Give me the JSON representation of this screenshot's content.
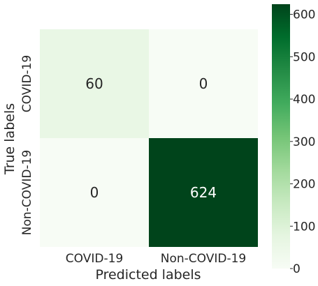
{
  "chart_data": {
    "type": "heatmap",
    "title": "",
    "xlabel": "Predicted labels",
    "ylabel": "True labels",
    "x_categories": [
      "COVID-19",
      "Non-COVID-19"
    ],
    "y_categories": [
      "COVID-19",
      "Non-COVID-19"
    ],
    "values": [
      [
        60,
        0
      ],
      [
        0,
        624
      ]
    ],
    "colormap": "Greens",
    "colorbar": {
      "range": [
        0,
        624
      ],
      "ticks": [
        0,
        100,
        200,
        300,
        400,
        500,
        600
      ]
    },
    "colors": {
      "min": "#f7fcf5",
      "max": "#00441b",
      "cell_text_dark": "#262626",
      "cell_text_light": "#ffffff"
    },
    "grid": false
  }
}
